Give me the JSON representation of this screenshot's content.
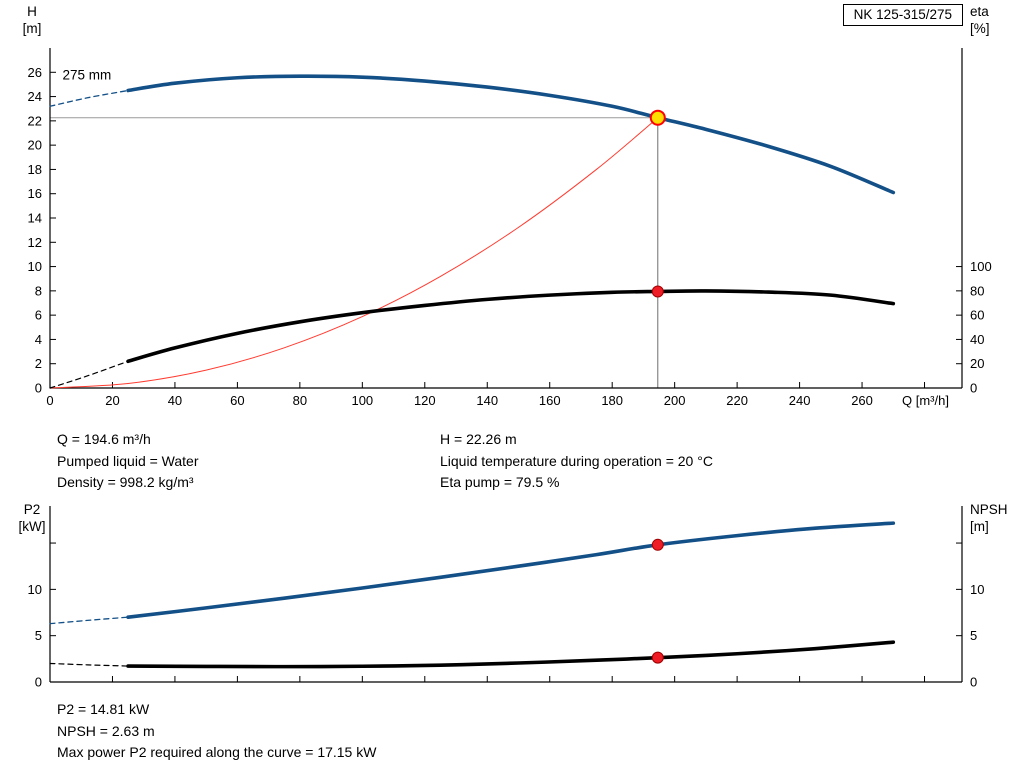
{
  "pump_name": "NK 125-315/275",
  "results_top": {
    "q": "Q = 194.6 m³/h",
    "pumped_liquid": "Pumped liquid = Water",
    "density": "Density = 998.2 kg/m³",
    "h": "H = 22.26 m",
    "liquid_temp": "Liquid temperature during operation = 20 °C",
    "eta_pump": "Eta pump = 79.5 %"
  },
  "results_bottom": {
    "p2": "P2 = 14.81 kW",
    "npsh": "NPSH = 2.63 m",
    "max_power": "Max power P2 required along the curve = 17.15 kW"
  },
  "colors": {
    "curve_blue": "#145088",
    "curve_black": "#000000",
    "system_red": "#ff3b30",
    "duty_yellow": "#ffdd00",
    "marker_red": "#ee1c25",
    "ref_gray": "#808080"
  },
  "chart_data": [
    {
      "type": "line",
      "title": "NK 125-315/275",
      "xlabel": "Q [m³/h]",
      "ylabel_left_lines": [
        "H",
        "[m]"
      ],
      "ylabel_right_lines": [
        "eta",
        "[%]"
      ],
      "grid": false,
      "legend": "none",
      "x": {
        "lim": [
          0,
          292
        ],
        "ticks": [
          0,
          20,
          40,
          60,
          80,
          100,
          120,
          140,
          160,
          180,
          200,
          220,
          240,
          260,
          280
        ],
        "tick_labels": [
          "0",
          "20",
          "40",
          "60",
          "80",
          "100",
          "120",
          "140",
          "160",
          "180",
          "200",
          "220",
          "240",
          "260",
          ""
        ]
      },
      "left": {
        "lim": [
          0,
          28
        ],
        "ticks": [
          0,
          2,
          4,
          6,
          8,
          10,
          12,
          14,
          16,
          18,
          20,
          22,
          24,
          26
        ],
        "tick_labels": [
          "0",
          "2",
          "4",
          "6",
          "8",
          "10",
          "12",
          "14",
          "16",
          "18",
          "20",
          "22",
          "24",
          "26"
        ]
      },
      "right": {
        "lim": [
          0,
          280
        ],
        "ticks": [
          0,
          20,
          40,
          60,
          80,
          100
        ],
        "tick_labels": [
          "0",
          "20",
          "40",
          "60",
          "80",
          "100"
        ]
      },
      "series": [
        {
          "name": "system-curve",
          "yaxis": "left",
          "color": "#ff3b30",
          "width": 1,
          "x": [
            0,
            25,
            50,
            75,
            100,
            125,
            150,
            175,
            194.6
          ],
          "y": [
            0,
            0.37,
            1.47,
            3.31,
            5.88,
            9.19,
            13.23,
            18.01,
            22.26
          ]
        },
        {
          "name": "head-curve-extension",
          "yaxis": "left",
          "color": "#145088",
          "width": 1.3,
          "dash": "5 4",
          "x": [
            0,
            12,
            25
          ],
          "y": [
            23.2,
            23.9,
            24.5
          ]
        },
        {
          "name": "head-curve",
          "yaxis": "left",
          "color": "#145088",
          "width": 3.6,
          "x": [
            25,
            40,
            60,
            80,
            100,
            120,
            140,
            160,
            180,
            194.6,
            210,
            230,
            250,
            270
          ],
          "y": [
            24.5,
            25.1,
            25.55,
            25.68,
            25.6,
            25.28,
            24.78,
            24.1,
            23.2,
            22.26,
            21.3,
            19.9,
            18.25,
            16.1
          ]
        },
        {
          "name": "eta-curve-extension",
          "yaxis": "right",
          "color": "#000000",
          "width": 1.2,
          "dash": "5 4",
          "x": [
            0,
            12,
            25
          ],
          "y": [
            0,
            10,
            22
          ]
        },
        {
          "name": "eta-curve",
          "yaxis": "right",
          "color": "#000000",
          "width": 3.6,
          "x": [
            25,
            40,
            60,
            80,
            100,
            120,
            140,
            160,
            180,
            194.6,
            210,
            230,
            250,
            270
          ],
          "y": [
            22,
            33,
            45,
            54.5,
            62,
            68,
            73,
            76.5,
            78.8,
            79.5,
            79.9,
            79,
            76.5,
            69.5
          ]
        }
      ],
      "ref_lines": [
        {
          "name": "duty-flow-line",
          "type": "v",
          "x": 194.6,
          "y1": 0,
          "y2": 22.26,
          "color": "#6e6e6e"
        },
        {
          "name": "duty-head-line",
          "type": "h",
          "y": 22.26,
          "x1": 0,
          "x2": 194.6,
          "color": "#9a9a9a"
        }
      ],
      "markers": [
        {
          "name": "duty-point",
          "yaxis": "left",
          "x": 194.6,
          "y": 22.26,
          "r": 7,
          "fill": "#ffdd00",
          "stroke": "#ff0000",
          "stroke_width": 2
        },
        {
          "name": "eta-duty-point",
          "yaxis": "right",
          "x": 194.6,
          "y": 79.5,
          "r": 5.5,
          "fill": "#ee1c25",
          "stroke": "#a00000",
          "stroke_width": 1
        }
      ],
      "annotations": [
        {
          "name": "impeller-diameter-label",
          "x": 4,
          "y": 25.4,
          "yaxis": "left",
          "text": "275 mm"
        }
      ],
      "duty_point": {
        "q_m3h": 194.6,
        "h_m": 22.26,
        "eta_pct": 79.5
      }
    },
    {
      "type": "line",
      "title": "",
      "xlabel": "",
      "ylabel_left_lines": [
        "P2",
        "[kW]"
      ],
      "ylabel_right_lines": [
        "NPSH",
        "[m]"
      ],
      "grid": false,
      "legend": "none",
      "x": {
        "lim": [
          0,
          292
        ],
        "ticks": [
          0,
          20,
          40,
          60,
          80,
          100,
          120,
          140,
          160,
          180,
          200,
          220,
          240,
          260,
          280
        ],
        "tick_labels": []
      },
      "left": {
        "lim": [
          0,
          19
        ],
        "ticks": [
          0,
          5,
          10,
          15
        ],
        "tick_labels": [
          "0",
          "5",
          "10",
          ""
        ]
      },
      "right": {
        "lim": [
          0,
          19
        ],
        "ticks": [
          0,
          5,
          10,
          15
        ],
        "tick_labels": [
          "0",
          "5",
          "10",
          ""
        ]
      },
      "series": [
        {
          "name": "p2-curve-extension",
          "yaxis": "left",
          "color": "#145088",
          "width": 1.3,
          "dash": "5 4",
          "x": [
            0,
            12,
            25
          ],
          "y": [
            6.3,
            6.65,
            7.0
          ]
        },
        {
          "name": "p2-curve",
          "yaxis": "left",
          "color": "#145088",
          "width": 3.6,
          "x": [
            25,
            50,
            75,
            100,
            125,
            150,
            175,
            194.6,
            220,
            245,
            270
          ],
          "y": [
            7.0,
            8.0,
            9.05,
            10.15,
            11.3,
            12.5,
            13.75,
            14.81,
            15.8,
            16.6,
            17.15
          ]
        },
        {
          "name": "npsh-curve-extension",
          "yaxis": "right",
          "color": "#000000",
          "width": 1.2,
          "dash": "5 4",
          "x": [
            0,
            12,
            25
          ],
          "y": [
            2.0,
            1.85,
            1.72
          ]
        },
        {
          "name": "npsh-curve",
          "yaxis": "right",
          "color": "#000000",
          "width": 3.6,
          "x": [
            25,
            50,
            75,
            100,
            125,
            150,
            175,
            194.6,
            220,
            245,
            270
          ],
          "y": [
            1.72,
            1.68,
            1.66,
            1.7,
            1.82,
            2.05,
            2.35,
            2.63,
            3.05,
            3.6,
            4.3
          ]
        }
      ],
      "ref_lines": [],
      "markers": [
        {
          "name": "p2-duty-point",
          "yaxis": "left",
          "x": 194.6,
          "y": 14.81,
          "r": 5.5,
          "fill": "#ee1c25",
          "stroke": "#a00000",
          "stroke_width": 1
        },
        {
          "name": "npsh-duty-point",
          "yaxis": "right",
          "x": 194.6,
          "y": 2.63,
          "r": 5.5,
          "fill": "#ee1c25",
          "stroke": "#a00000",
          "stroke_width": 1
        }
      ],
      "annotations": [],
      "duty_point": {
        "q_m3h": 194.6,
        "p2_kw": 14.81,
        "npsh_m": 2.63
      },
      "max_p2_kw": 17.15
    }
  ]
}
